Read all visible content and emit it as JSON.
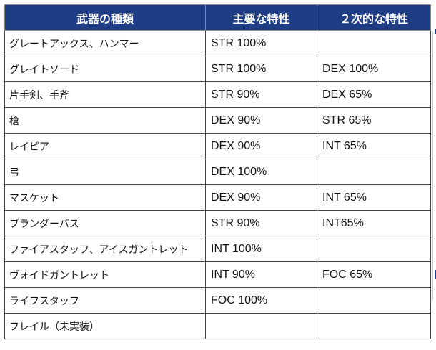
{
  "table": {
    "headers": {
      "weapon_type": "武器の種類",
      "primary": "主要な特性",
      "secondary": "２次的な特性"
    },
    "rows": [
      {
        "weapon": "グレートアックス、ハンマー",
        "primary": "STR 100%",
        "secondary": ""
      },
      {
        "weapon": "グレイトソード",
        "primary": "STR 100%",
        "secondary": "DEX 100%"
      },
      {
        "weapon": "片手剣、手斧",
        "primary": "STR 90%",
        "secondary": "DEX 65%"
      },
      {
        "weapon": "槍",
        "primary": "DEX 90%",
        "secondary": "STR 65%"
      },
      {
        "weapon": "レイピア",
        "primary": "DEX 90%",
        "secondary": "INT 65%"
      },
      {
        "weapon": "弓",
        "primary": "DEX 100%",
        "secondary": ""
      },
      {
        "weapon": "マスケット",
        "primary": "DEX 90%",
        "secondary": "INT 65%"
      },
      {
        "weapon": "ブランダーバス",
        "primary": "STR 90%",
        "secondary": "INT65%"
      },
      {
        "weapon": "ファイアスタッフ、アイスガントレット",
        "primary": "INT 100%",
        "secondary": ""
      },
      {
        "weapon": "ヴォイドガントレット",
        "primary": "INT 90%",
        "secondary": "FOC 65%"
      },
      {
        "weapon": "ライフスタッフ",
        "primary": "FOC 100%",
        "secondary": ""
      },
      {
        "weapon": "フレイル（未実装）",
        "primary": "",
        "secondary": ""
      }
    ]
  },
  "colors": {
    "header_background": "#1f3d84",
    "header_text": "#ffffff",
    "border": "#444444"
  }
}
